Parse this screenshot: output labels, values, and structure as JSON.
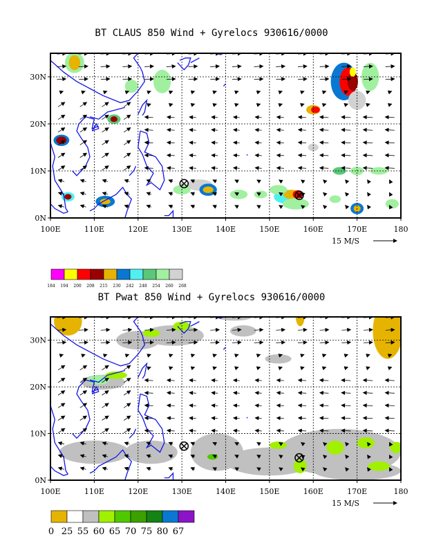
{
  "panels": [
    {
      "title": "BT CLAUS 850 Wind + Gyrelocs 930616/0000",
      "y_ticks": [
        "30N",
        "20N",
        "10N",
        "0N"
      ],
      "x_ticks": [
        "100E",
        "110E",
        "120E",
        "130E",
        "140E",
        "150E",
        "160E",
        "170E",
        "180"
      ],
      "vector_label": "15 M/S",
      "legend": {
        "colors": [
          "#ff00ff",
          "#ffff00",
          "#ff0000",
          "#990000",
          "#e6b400",
          "#0a78d2",
          "#50f0f0",
          "#5ac878",
          "#a0f0a0",
          "#d2d2d2"
        ],
        "labels": [
          "184",
          "194",
          "200",
          "208",
          "215",
          "230",
          "242",
          "248",
          "254",
          "260",
          "268"
        ]
      },
      "gyrelocs": [
        {
          "lon": 130.5,
          "lat": 7.3
        },
        {
          "lon": 156.8,
          "lat": 4.8
        }
      ]
    },
    {
      "title": "BT Pwat 850 Wind + Gyrelocs 930616/0000",
      "y_ticks": [
        "30N",
        "20N",
        "10N",
        "0N"
      ],
      "x_ticks": [
        "100E",
        "110E",
        "120E",
        "130E",
        "140E",
        "150E",
        "160E",
        "170E",
        "180"
      ],
      "vector_label": "15 M/S",
      "legend": {
        "colors": [
          "#e6b400",
          "#ffffff",
          "#c0c0c0",
          "#a0f000",
          "#50c800",
          "#3ca000",
          "#148214",
          "#0a78d2",
          "#8c14c8"
        ],
        "labels": [
          "0",
          "25",
          "55",
          "60",
          "65",
          "70",
          "75",
          "80",
          "67"
        ]
      },
      "gyrelocs": [
        {
          "lon": 130.5,
          "lat": 7.3
        },
        {
          "lon": 156.8,
          "lat": 4.8
        }
      ]
    }
  ],
  "colors": {
    "coast": "#1414e6",
    "frame": "#000000"
  }
}
